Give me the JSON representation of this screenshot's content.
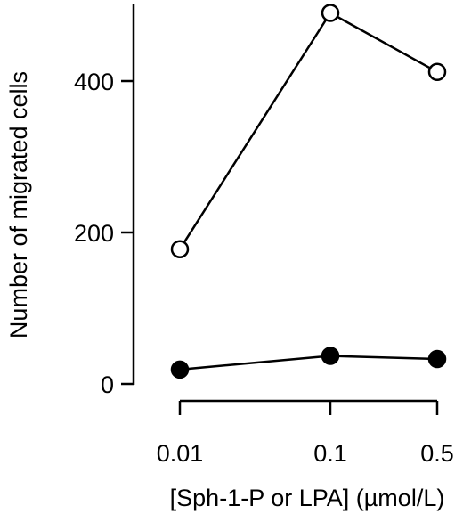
{
  "chart_data": {
    "type": "line",
    "title": "",
    "xlabel": "[Sph-1-P or LPA] (µmol/L)",
    "ylabel": "Number of migrated cells",
    "x_categories": [
      "0.01",
      "0.1",
      "0.5"
    ],
    "y_ticks": [
      0,
      200,
      400
    ],
    "ylim": [
      0,
      500
    ],
    "grid": false,
    "legend": "none",
    "series": [
      {
        "marker": "open-circle",
        "values": [
          178,
          490,
          412
        ]
      },
      {
        "marker": "filled-circle",
        "values": [
          19,
          37,
          33
        ]
      }
    ]
  }
}
